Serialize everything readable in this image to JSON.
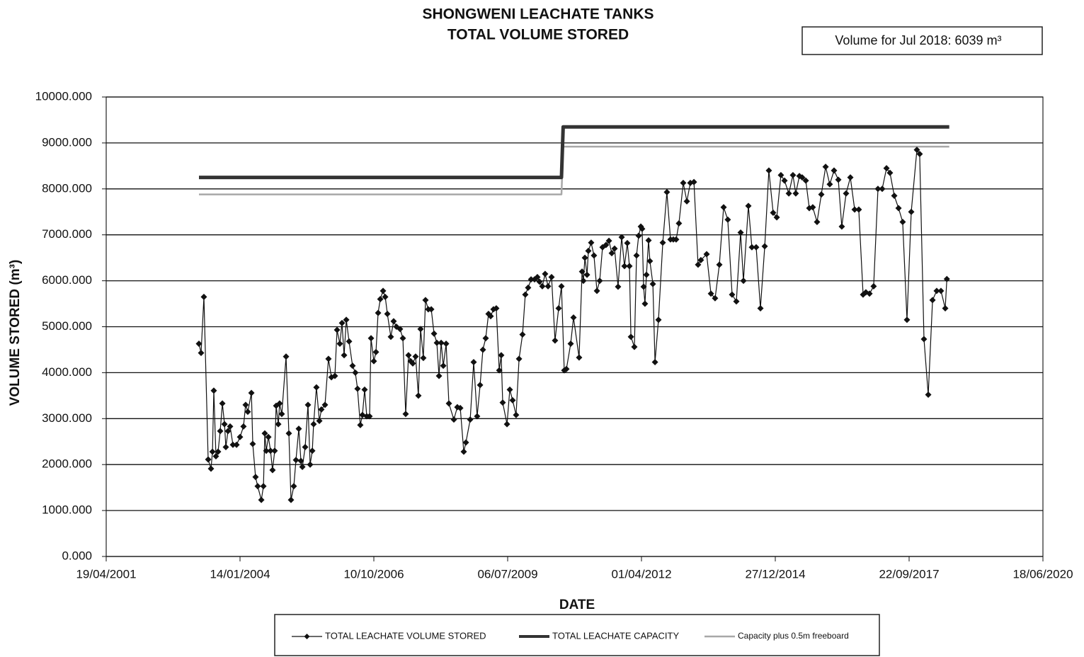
{
  "chart_data": {
    "type": "line",
    "title": [
      "SHONGWENI LEACHATE TANKS",
      "TOTAL VOLUME STORED"
    ],
    "annotation": "Volume for Jul 2018: 6039 m³",
    "x_label": "DATE",
    "y_label": "VOLUME STORED (m³)",
    "xlim": [
      37000,
      44000
    ],
    "xticks": [
      {
        "value": 37000,
        "label": "19/04/2001"
      },
      {
        "value": 38000,
        "label": "14/01/2004"
      },
      {
        "value": 39000,
        "label": "10/10/2006"
      },
      {
        "value": 40000,
        "label": "06/07/2009"
      },
      {
        "value": 41000,
        "label": "01/04/2012"
      },
      {
        "value": 42000,
        "label": "27/12/2014"
      },
      {
        "value": 43000,
        "label": "22/09/2017"
      },
      {
        "value": 44000,
        "label": "18/06/2020"
      }
    ],
    "ylim": [
      0,
      10000
    ],
    "yticks": [
      {
        "value": 0,
        "label": "0.000"
      },
      {
        "value": 1000,
        "label": "1000.000"
      },
      {
        "value": 2000,
        "label": "2000.000"
      },
      {
        "value": 3000,
        "label": "3000.000"
      },
      {
        "value": 4000,
        "label": "4000.000"
      },
      {
        "value": 5000,
        "label": "5000.000"
      },
      {
        "value": 6000,
        "label": "6000.000"
      },
      {
        "value": 7000,
        "label": "7000.000"
      },
      {
        "value": 8000,
        "label": "8000.000"
      },
      {
        "value": 9000,
        "label": "9000.000"
      },
      {
        "value": 10000,
        "label": "10000.000"
      }
    ],
    "grid": true,
    "legend": "bottom",
    "series": [
      {
        "name": "TOTAL LEACHATE VOLUME STORED",
        "color": "#111111",
        "width": 1.2,
        "marker": "diamond",
        "x": [
          37693,
          37709,
          37730,
          37762,
          37783,
          37794,
          37804,
          37820,
          37836,
          37852,
          37868,
          37884,
          37894,
          37910,
          37926,
          37947,
          37974,
          38000,
          38026,
          38042,
          38058,
          38085,
          38095,
          38116,
          38132,
          38159,
          38175,
          38185,
          38196,
          38212,
          38228,
          38243,
          38259,
          38270,
          38286,
          38296,
          38312,
          38344,
          38365,
          38381,
          38402,
          38418,
          38439,
          38455,
          38466,
          38487,
          38508,
          38524,
          38540,
          38550,
          38571,
          38593,
          38608,
          38635,
          38661,
          38683,
          38709,
          38725,
          38746,
          38762,
          38778,
          38794,
          38815,
          38841,
          38862,
          38878,
          38899,
          38915,
          38931,
          38947,
          38968,
          38979,
          39000,
          39016,
          39032,
          39048,
          39069,
          39085,
          39101,
          39127,
          39148,
          39169,
          39196,
          39217,
          39238,
          39259,
          39275,
          39291,
          39312,
          39333,
          39349,
          39370,
          39386,
          39407,
          39429,
          39450,
          39471,
          39487,
          39503,
          39519,
          39540,
          39561,
          39598,
          39624,
          39646,
          39672,
          39688,
          39720,
          39746,
          39772,
          39794,
          39815,
          39836,
          39857,
          39873,
          39894,
          39915,
          39937,
          39952,
          39963,
          39995,
          40016,
          40037,
          40063,
          40085,
          40111,
          40132,
          40153,
          40175,
          40201,
          40222,
          40238,
          40259,
          40280,
          40302,
          40328,
          40354,
          40381,
          40402,
          40423,
          40439,
          40471,
          40492,
          40534,
          40556,
          40566,
          40577,
          40593,
          40603,
          40624,
          40645,
          40667,
          40688,
          40709,
          40735,
          40757,
          40778,
          40799,
          40825,
          40852,
          40873,
          40894,
          40910,
          40921,
          40947,
          40963,
          40979,
          40995,
          41005,
          41016,
          41026,
          41037,
          41053,
          41063,
          41085,
          41101,
          41127,
          41159,
          41190,
          41217,
          41238,
          41259,
          41280,
          41312,
          41339,
          41365,
          41392,
          41423,
          41444,
          41487,
          41519,
          41550,
          41582,
          41614,
          41645,
          41677,
          41709,
          41741,
          41762,
          41799,
          41825,
          41857,
          41889,
          41921,
          41952,
          41984,
          42011,
          42042,
          42069,
          42101,
          42132,
          42153,
          42180,
          42201,
          42228,
          42254,
          42280,
          42312,
          42344,
          42376,
          42407,
          42439,
          42471,
          42497,
          42529,
          42561,
          42593,
          42624,
          42656,
          42677,
          42704,
          42735,
          42767,
          42799,
          42831,
          42857,
          42889,
          42921,
          42952,
          42984,
          43016,
          43058,
          43079,
          43111,
          43143,
          43175,
          43206,
          43238,
          43270,
          43282
        ],
        "values": [
          4630,
          4430,
          5650,
          2110,
          1910,
          2280,
          3610,
          2180,
          2280,
          2730,
          3330,
          2880,
          2380,
          2730,
          2830,
          2430,
          2430,
          2600,
          2830,
          3300,
          3150,
          3560,
          2450,
          1730,
          1530,
          1230,
          1530,
          2680,
          2300,
          2600,
          2300,
          1880,
          2300,
          3280,
          2880,
          3330,
          3100,
          4350,
          2680,
          1230,
          1530,
          2100,
          2780,
          2080,
          1950,
          2380,
          3300,
          2000,
          2300,
          2880,
          3680,
          2950,
          3200,
          3300,
          4300,
          3900,
          3930,
          4930,
          4630,
          5080,
          4380,
          5150,
          4680,
          4150,
          4000,
          3650,
          2860,
          3080,
          3630,
          3050,
          3050,
          4750,
          4250,
          4450,
          5300,
          5600,
          5780,
          5650,
          5280,
          4780,
          5120,
          5000,
          4950,
          4750,
          3100,
          4380,
          4250,
          4200,
          4350,
          3500,
          4950,
          4320,
          5580,
          5380,
          5380,
          4850,
          4650,
          3930,
          4650,
          4150,
          4630,
          3330,
          2980,
          3250,
          3230,
          2280,
          2480,
          2980,
          4230,
          3050,
          3730,
          4500,
          4750,
          5280,
          5230,
          5380,
          5400,
          4050,
          4380,
          3350,
          2880,
          3630,
          3400,
          3080,
          4300,
          4830,
          5700,
          5850,
          6030,
          6030,
          6080,
          5980,
          5880,
          6150,
          5880,
          6080,
          4700,
          5400,
          5880,
          4050,
          4080,
          4630,
          5200,
          4330,
          6200,
          6000,
          6500,
          6130,
          6650,
          6830,
          6550,
          5780,
          6000,
          6730,
          6780,
          6870,
          6600,
          6700,
          5870,
          6950,
          6320,
          6820,
          6320,
          4780,
          4560,
          6550,
          6980,
          7180,
          7130,
          5870,
          5500,
          6130,
          6880,
          6430,
          5930,
          4230,
          5150,
          6830,
          7930,
          6900,
          6900,
          6900,
          7250,
          8130,
          7730,
          8130,
          8150,
          6350,
          6450,
          6580,
          5720,
          5620,
          6350,
          7600,
          7330,
          5700,
          5550,
          7050,
          6000,
          7630,
          6730,
          6730,
          5400,
          6750,
          8400,
          7480,
          7380,
          8300,
          8180,
          7900,
          8300,
          7900,
          8280,
          8250,
          8180,
          7580,
          7600,
          7280,
          7880,
          8480,
          8100,
          8400,
          8200,
          7180,
          7900,
          8250,
          7550,
          7550,
          5700,
          5750,
          5720,
          5880,
          8000,
          8000,
          8450,
          8350,
          7850,
          7580,
          7280,
          5150,
          7500,
          8850,
          8760,
          4730,
          3520,
          5580,
          5780,
          5780,
          5400,
          6039
        ]
      },
      {
        "name": "TOTAL LEACHATE CAPACITY",
        "color": "#333333",
        "width": 5,
        "x": [
          37693,
          40402,
          40415,
          43300
        ],
        "values": [
          8250,
          8250,
          9350,
          9350
        ]
      },
      {
        "name": "Capacity plus 0.5m freeboard",
        "color": "#a8a8a8",
        "width": 2.5,
        "x": [
          37693,
          40402,
          40415,
          43300
        ],
        "values": [
          7880,
          7880,
          8920,
          8920
        ]
      }
    ]
  }
}
